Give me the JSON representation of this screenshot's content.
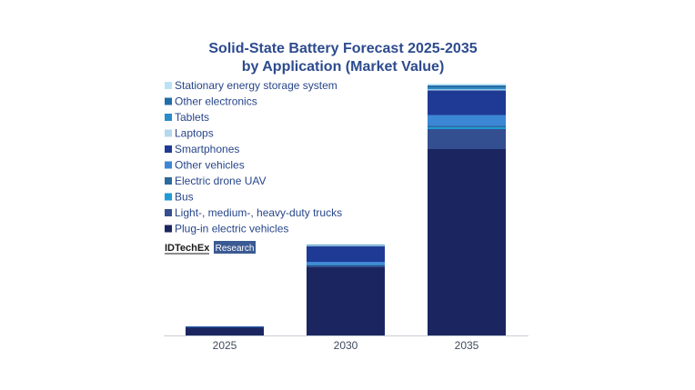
{
  "chart_data": {
    "type": "bar",
    "stacked": true,
    "title": "Solid-State Battery Forecast 2025-2035",
    "subtitle": "by Application (Market Value)",
    "xlabel": "",
    "ylabel": "",
    "categories": [
      "2025",
      "2030",
      "2035"
    ],
    "ylim": [
      0,
      280
    ],
    "grid": false,
    "legend_position": "top-left",
    "series": [
      {
        "name": "Plug-in electric vehicles",
        "color": "#1b2660",
        "values": [
          9,
          75,
          205
        ]
      },
      {
        "name": "Light-, medium-, heavy-duty trucks",
        "color": "#344f8f",
        "values": [
          0.3,
          2,
          22
        ]
      },
      {
        "name": "Bus",
        "color": "#1e9bd7",
        "values": [
          0.1,
          0.5,
          2
        ]
      },
      {
        "name": "Electric drone UAV",
        "color": "#2b6a9c",
        "values": [
          0.1,
          0.7,
          1.5
        ]
      },
      {
        "name": "Other vehicles",
        "color": "#3c86d6",
        "values": [
          0.2,
          2.8,
          12
        ]
      },
      {
        "name": "Smartphones",
        "color": "#1f3a94",
        "values": [
          0.3,
          17,
          27
        ]
      },
      {
        "name": "Laptops",
        "color": "#b5d7ee",
        "values": [
          0,
          0.7,
          1.2
        ]
      },
      {
        "name": "Tablets",
        "color": "#2a8cc8",
        "values": [
          0,
          0.5,
          1.5
        ]
      },
      {
        "name": "Other electronics",
        "color": "#1f6ea9",
        "values": [
          0,
          0.6,
          3
        ]
      },
      {
        "name": "Stationary energy storage system",
        "color": "#b9e3f5",
        "values": [
          0,
          0.5,
          1.6
        ]
      }
    ]
  },
  "branding": {
    "logo_text": "IDTechEx",
    "logo_tag": "Research"
  }
}
